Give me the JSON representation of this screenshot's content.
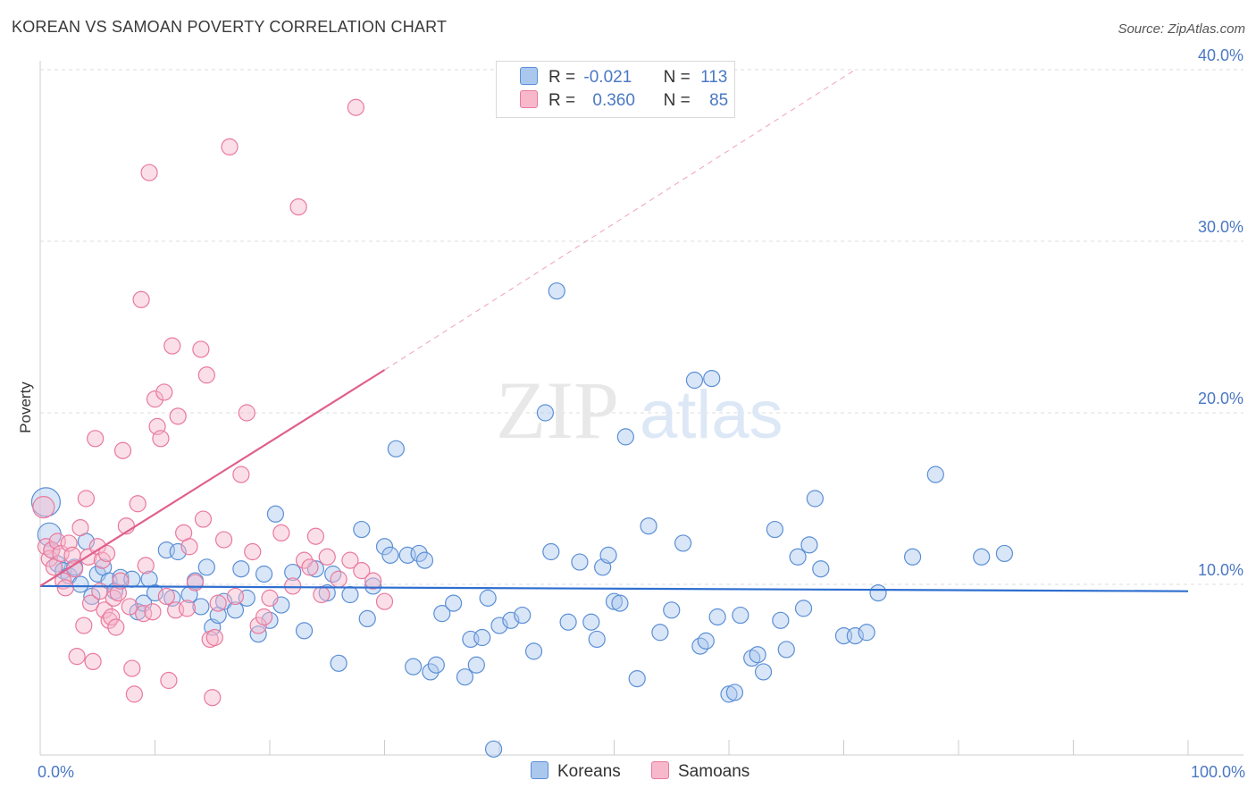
{
  "header": {
    "title": "KOREAN VS SAMOAN POVERTY CORRELATION CHART",
    "source": "Source: ZipAtlas.com"
  },
  "watermark": {
    "zip": "ZIP",
    "atlas": "atlas"
  },
  "legend": {
    "rows": [
      {
        "r_label": "R =",
        "r_value": "-0.021",
        "n_label": "N =",
        "n_value": "113"
      },
      {
        "r_label": "R =",
        "r_value": "0.360",
        "n_label": "N =",
        "n_value": "85"
      }
    ]
  },
  "bottom_legend": {
    "koreans": "Koreans",
    "samoans": "Samoans"
  },
  "colors": {
    "korean_fill": "#aac8ee",
    "korean_stroke": "#5b8fd6",
    "korean_line": "#2f6fd0",
    "samoan_fill": "#f7b8cc",
    "samoan_stroke": "#e9799d",
    "samoan_line": "#e0608a",
    "tick_label": "#4a78c4",
    "grid": "#dddddd"
  },
  "chart_data": {
    "type": "scatter",
    "title": "KOREAN VS SAMOAN POVERTY CORRELATION CHART",
    "xlabel": "",
    "ylabel": "Poverty",
    "xlim": [
      0,
      100
    ],
    "ylim": [
      0,
      40
    ],
    "x_tick_labels": [
      "0.0%",
      "100.0%"
    ],
    "y_ticks": [
      10,
      20,
      30,
      40
    ],
    "y_tick_labels": [
      "10.0%",
      "20.0%",
      "30.0%",
      "40.0%"
    ],
    "grid": true,
    "legend_position": "top-center",
    "series": [
      {
        "name": "Koreans",
        "r": -0.021,
        "n": 113,
        "trend": {
          "x0": 0,
          "y0": 9.9,
          "x1": 100,
          "y1": 9.6
        },
        "points": [
          [
            0.5,
            14.8
          ],
          [
            0.8,
            12.9
          ],
          [
            1.0,
            12.0
          ],
          [
            1.5,
            11.2
          ],
          [
            2.0,
            10.8
          ],
          [
            2.5,
            10.5
          ],
          [
            3.0,
            11.0
          ],
          [
            3.5,
            10.0
          ],
          [
            4.0,
            12.5
          ],
          [
            4.5,
            9.3
          ],
          [
            5.0,
            10.6
          ],
          [
            5.5,
            11.0
          ],
          [
            6.0,
            10.2
          ],
          [
            6.5,
            9.6
          ],
          [
            7.0,
            10.4
          ],
          [
            8.0,
            10.3
          ],
          [
            8.5,
            8.4
          ],
          [
            9.0,
            8.9
          ],
          [
            9.5,
            10.3
          ],
          [
            10.0,
            9.5
          ],
          [
            11.0,
            12.0
          ],
          [
            11.5,
            9.2
          ],
          [
            12.0,
            11.9
          ],
          [
            13.0,
            9.4
          ],
          [
            13.5,
            10.2
          ],
          [
            14.0,
            8.7
          ],
          [
            14.5,
            11.0
          ],
          [
            15.0,
            7.5
          ],
          [
            15.5,
            8.2
          ],
          [
            16.0,
            9.0
          ],
          [
            17.0,
            8.5
          ],
          [
            17.5,
            10.9
          ],
          [
            18.0,
            9.2
          ],
          [
            19.0,
            7.1
          ],
          [
            19.5,
            10.6
          ],
          [
            20.0,
            7.9
          ],
          [
            20.5,
            14.1
          ],
          [
            21.0,
            8.8
          ],
          [
            22.0,
            10.7
          ],
          [
            23.0,
            7.3
          ],
          [
            24.0,
            10.9
          ],
          [
            25.0,
            9.5
          ],
          [
            25.5,
            10.6
          ],
          [
            26.0,
            5.4
          ],
          [
            27.0,
            9.4
          ],
          [
            28.0,
            13.2
          ],
          [
            28.5,
            8.0
          ],
          [
            29.0,
            9.9
          ],
          [
            30.0,
            12.2
          ],
          [
            30.5,
            11.7
          ],
          [
            31.0,
            17.9
          ],
          [
            32.0,
            11.7
          ],
          [
            32.5,
            5.2
          ],
          [
            33.0,
            11.8
          ],
          [
            33.5,
            11.4
          ],
          [
            34.0,
            4.9
          ],
          [
            34.5,
            5.3
          ],
          [
            35.0,
            8.3
          ],
          [
            36.0,
            8.9
          ],
          [
            37.0,
            4.6
          ],
          [
            37.5,
            6.8
          ],
          [
            38.0,
            5.3
          ],
          [
            38.5,
            6.9
          ],
          [
            39.0,
            9.2
          ],
          [
            39.5,
            0.4
          ],
          [
            40.0,
            7.6
          ],
          [
            41.0,
            7.9
          ],
          [
            42.0,
            8.2
          ],
          [
            43.0,
            6.1
          ],
          [
            44.0,
            20.0
          ],
          [
            44.5,
            11.9
          ],
          [
            45.0,
            27.1
          ],
          [
            46.0,
            7.8
          ],
          [
            47.0,
            11.3
          ],
          [
            48.0,
            7.8
          ],
          [
            48.5,
            6.8
          ],
          [
            49.0,
            11.0
          ],
          [
            49.5,
            11.7
          ],
          [
            50.0,
            9.0
          ],
          [
            50.5,
            8.9
          ],
          [
            51.0,
            18.6
          ],
          [
            52.0,
            4.5
          ],
          [
            53.0,
            13.4
          ],
          [
            54.0,
            7.2
          ],
          [
            55.0,
            8.5
          ],
          [
            56.0,
            12.4
          ],
          [
            57.0,
            21.9
          ],
          [
            57.5,
            6.4
          ],
          [
            58.0,
            6.7
          ],
          [
            58.5,
            22.0
          ],
          [
            59.0,
            8.1
          ],
          [
            60.0,
            3.6
          ],
          [
            60.5,
            3.7
          ],
          [
            61.0,
            8.2
          ],
          [
            62.0,
            5.7
          ],
          [
            62.5,
            5.9
          ],
          [
            63.0,
            4.9
          ],
          [
            64.0,
            13.2
          ],
          [
            64.5,
            7.9
          ],
          [
            65.0,
            6.2
          ],
          [
            66.0,
            11.6
          ],
          [
            66.5,
            8.6
          ],
          [
            67.0,
            12.3
          ],
          [
            67.5,
            15.0
          ],
          [
            68.0,
            10.9
          ],
          [
            70.0,
            7.0
          ],
          [
            71.0,
            7.0
          ],
          [
            72.0,
            7.2
          ],
          [
            73.0,
            9.5
          ],
          [
            76.0,
            11.6
          ],
          [
            78.0,
            16.4
          ],
          [
            82.0,
            11.6
          ],
          [
            84.0,
            11.8
          ]
        ]
      },
      {
        "name": "Samoans",
        "r": 0.36,
        "n": 85,
        "trend": {
          "x0": 0,
          "y0": 9.9,
          "x1": 30,
          "y1": 22.5
        },
        "trend_ext": {
          "x0": 30,
          "y0": 22.5,
          "x1": 71,
          "y1": 40
        },
        "points": [
          [
            0.3,
            14.5
          ],
          [
            0.5,
            12.2
          ],
          [
            0.8,
            11.5
          ],
          [
            1.0,
            12.0
          ],
          [
            1.2,
            11.0
          ],
          [
            1.5,
            12.5
          ],
          [
            1.8,
            11.8
          ],
          [
            2.0,
            10.2
          ],
          [
            2.2,
            9.8
          ],
          [
            2.5,
            12.4
          ],
          [
            2.8,
            11.7
          ],
          [
            3.0,
            10.9
          ],
          [
            3.2,
            5.8
          ],
          [
            3.5,
            13.3
          ],
          [
            3.8,
            7.6
          ],
          [
            4.0,
            15.0
          ],
          [
            4.2,
            11.6
          ],
          [
            4.4,
            8.9
          ],
          [
            4.6,
            5.5
          ],
          [
            4.8,
            18.5
          ],
          [
            5.0,
            12.2
          ],
          [
            5.2,
            9.6
          ],
          [
            5.4,
            11.4
          ],
          [
            5.6,
            8.5
          ],
          [
            5.8,
            11.8
          ],
          [
            6.0,
            7.9
          ],
          [
            6.2,
            8.1
          ],
          [
            6.4,
            9.2
          ],
          [
            6.6,
            7.5
          ],
          [
            6.8,
            9.5
          ],
          [
            7.0,
            10.2
          ],
          [
            7.2,
            17.8
          ],
          [
            7.5,
            13.4
          ],
          [
            7.8,
            8.7
          ],
          [
            8.0,
            5.1
          ],
          [
            8.2,
            3.6
          ],
          [
            8.5,
            14.7
          ],
          [
            8.8,
            26.6
          ],
          [
            9.0,
            8.3
          ],
          [
            9.2,
            11.1
          ],
          [
            9.5,
            34.0
          ],
          [
            9.8,
            8.4
          ],
          [
            10.0,
            20.8
          ],
          [
            10.2,
            19.2
          ],
          [
            10.5,
            18.5
          ],
          [
            10.8,
            21.2
          ],
          [
            11.0,
            9.3
          ],
          [
            11.2,
            4.4
          ],
          [
            11.5,
            23.9
          ],
          [
            11.8,
            8.5
          ],
          [
            12.0,
            19.8
          ],
          [
            12.5,
            13.0
          ],
          [
            13.0,
            12.2
          ],
          [
            13.5,
            10.1
          ],
          [
            14.0,
            23.7
          ],
          [
            14.2,
            13.8
          ],
          [
            14.5,
            22.2
          ],
          [
            14.8,
            6.8
          ],
          [
            15.0,
            3.4
          ],
          [
            15.2,
            6.9
          ],
          [
            15.5,
            8.9
          ],
          [
            16.0,
            12.6
          ],
          [
            16.5,
            35.5
          ],
          [
            17.0,
            9.3
          ],
          [
            17.5,
            16.4
          ],
          [
            18.0,
            20.0
          ],
          [
            18.5,
            11.9
          ],
          [
            19.0,
            7.6
          ],
          [
            19.5,
            8.1
          ],
          [
            20.0,
            9.2
          ],
          [
            21.0,
            13.0
          ],
          [
            22.0,
            9.9
          ],
          [
            22.5,
            32.0
          ],
          [
            23.0,
            11.4
          ],
          [
            23.5,
            11.0
          ],
          [
            24.0,
            12.8
          ],
          [
            24.5,
            9.4
          ],
          [
            25.0,
            11.6
          ],
          [
            26.0,
            10.3
          ],
          [
            27.0,
            11.4
          ],
          [
            28.0,
            10.8
          ],
          [
            29.0,
            10.2
          ],
          [
            30.0,
            9.0
          ],
          [
            27.5,
            37.8
          ],
          [
            12.8,
            8.6
          ]
        ]
      }
    ]
  }
}
